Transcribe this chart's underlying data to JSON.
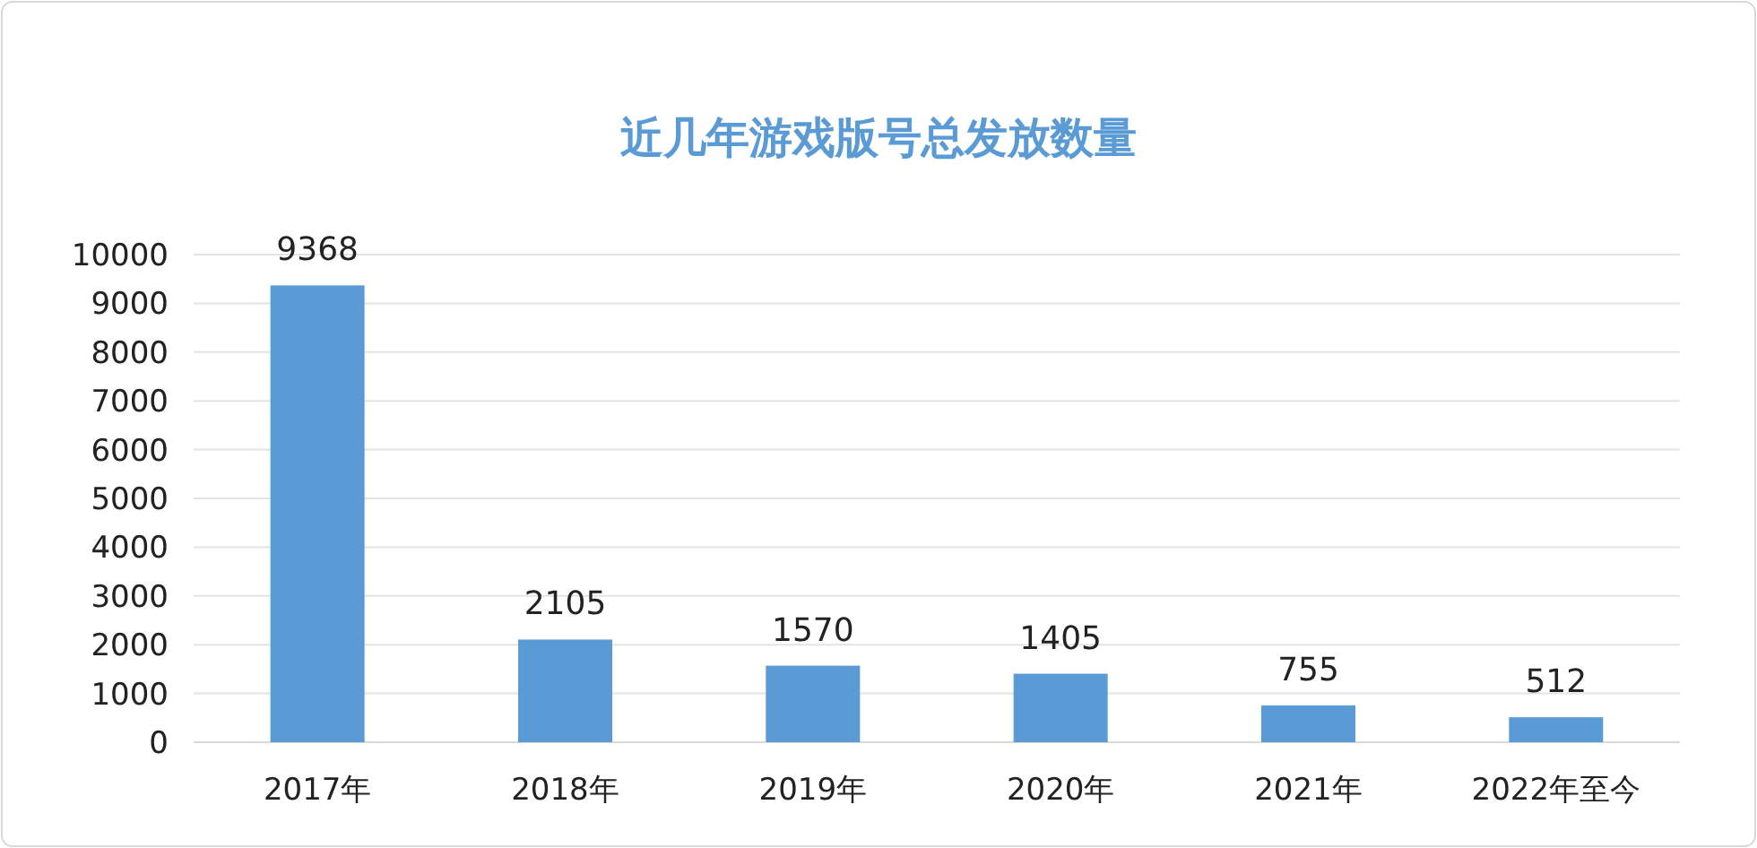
{
  "chart_data": {
    "type": "bar",
    "title": "近几年游戏版号总发放数量",
    "categories": [
      "2017年",
      "2018年",
      "2019年",
      "2020年",
      "2021年",
      "2022年至今"
    ],
    "values": [
      9368,
      2105,
      1570,
      1405,
      755,
      512
    ],
    "color": "#5b9bd5",
    "ylim": [
      0,
      10000
    ],
    "yticks": [
      0,
      1000,
      2000,
      3000,
      4000,
      5000,
      6000,
      7000,
      8000,
      9000,
      10000
    ],
    "grid": "y",
    "data_labels": true
  }
}
